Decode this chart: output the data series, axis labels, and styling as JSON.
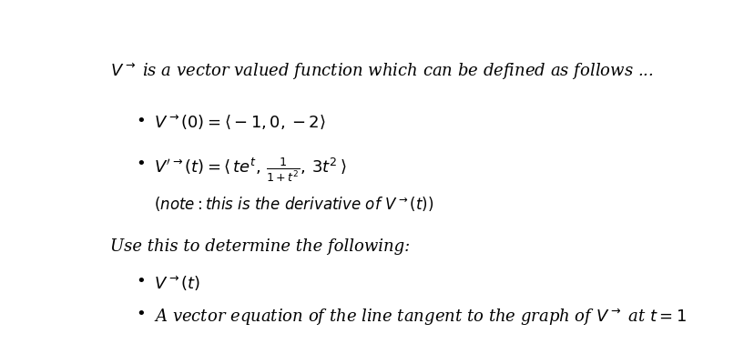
{
  "background_color": "#ffffff",
  "figsize": [
    8.17,
    3.89
  ],
  "dpi": 100,
  "title_text": "$V^{\\rightarrow}$ is a vector valued function which can be defined as follows ...",
  "bullet1": "$V^{\\rightarrow}(0) = \\langle -1, 0, -2 \\rangle$",
  "bullet2": "$V'^{\\rightarrow}(t) = \\langle\\, te^{t},\\, \\frac{1}{1+t^{2}},\\, 3t^{2}\\,\\rangle$",
  "note": "$(note: this\\ is\\ the\\ derivative\\ of\\ V^{\\rightarrow}(t))$",
  "use_text": "Use this to determine the following:",
  "item1": "$V^{\\rightarrow}(t)$",
  "item2": "A vector equation of the line tangent to the graph of $V^{\\rightarrow}$ at $t = 1$",
  "font_color": "#000000",
  "font_size_body": 13,
  "font_size_note": 12
}
